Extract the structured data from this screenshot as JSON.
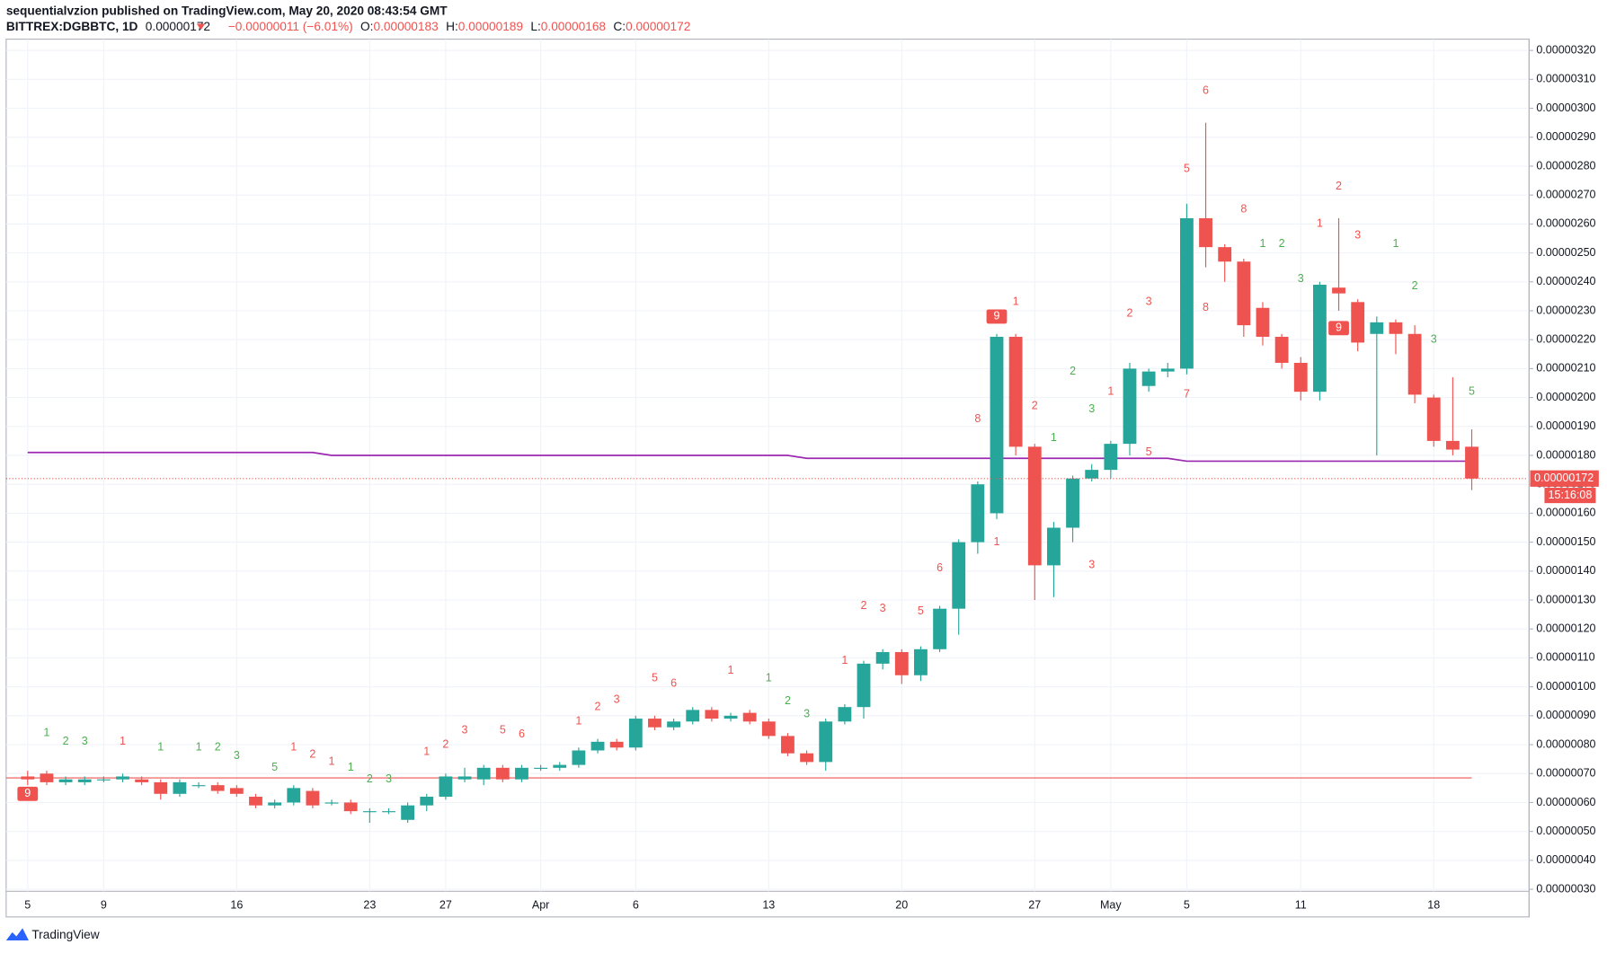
{
  "header": {
    "byline": "sequentialvzion published on TradingView.com, May 20, 2020 08:43:54 GMT",
    "symbol": "BITTREX:DGBBTC, 1D",
    "last": "0.00000172",
    "change": "−0.00000011 (−6.01%)",
    "ohlc": [
      {
        "label": "O:",
        "value": "0.00000183"
      },
      {
        "label": "H:",
        "value": "0.00000189"
      },
      {
        "label": "L:",
        "value": "0.00000168"
      },
      {
        "label": "C:",
        "value": "0.00000172"
      }
    ]
  },
  "footer": {
    "logo": "TradingView"
  },
  "chart_data": {
    "type": "candlestick",
    "categories": [
      "5",
      null,
      null,
      null,
      "9",
      null,
      null,
      null,
      null,
      null,
      null,
      "16",
      null,
      null,
      null,
      null,
      null,
      null,
      "23",
      null,
      null,
      null,
      "27",
      null,
      null,
      null,
      null,
      "Apr",
      null,
      null,
      null,
      null,
      "6",
      null,
      null,
      null,
      null,
      null,
      null,
      "13",
      null,
      null,
      null,
      null,
      null,
      null,
      "20",
      null,
      null,
      null,
      null,
      null,
      null,
      "27",
      null,
      null,
      null,
      "May",
      null,
      null,
      null,
      "5",
      null,
      null,
      null,
      null,
      null,
      "11",
      null,
      null,
      null,
      null,
      null,
      null,
      "18",
      null,
      null
    ],
    "open": [
      6.9e-07,
      7e-07,
      6.7e-07,
      6.7e-07,
      6.8e-07,
      6.8e-07,
      6.8e-07,
      6.7e-07,
      6.3e-07,
      6.6e-07,
      6.6e-07,
      6.5e-07,
      6.2e-07,
      5.9e-07,
      6e-07,
      6.4e-07,
      6e-07,
      6e-07,
      5.7e-07,
      5.7e-07,
      5.4e-07,
      5.9e-07,
      6.2e-07,
      6.8e-07,
      6.8e-07,
      7.2e-07,
      6.8e-07,
      7.2e-07,
      7.2e-07,
      7.3e-07,
      7.8e-07,
      8.1e-07,
      7.9e-07,
      8.9e-07,
      8.6e-07,
      8.8e-07,
      9.2e-07,
      8.9e-07,
      9.1e-07,
      8.8e-07,
      8.3e-07,
      7.7e-07,
      7.4e-07,
      8.8e-07,
      9.3e-07,
      1.08e-06,
      1.12e-06,
      1.04e-06,
      1.13e-06,
      1.27e-06,
      1.5e-06,
      1.6e-06,
      2.21e-06,
      1.83e-06,
      1.42e-06,
      1.55e-06,
      1.72e-06,
      1.75e-06,
      1.84e-06,
      2.04e-06,
      2.09e-06,
      2.1e-06,
      2.62e-06,
      2.52e-06,
      2.47e-06,
      2.31e-06,
      2.21e-06,
      2.12e-06,
      2.02e-06,
      2.38e-06,
      2.33e-06,
      2.22e-06,
      2.26e-06,
      2.22e-06,
      2e-06,
      1.85e-06,
      1.83e-06
    ],
    "high": [
      7.1e-07,
      7.1e-07,
      6.9e-07,
      6.9e-07,
      6.9e-07,
      7e-07,
      6.9e-07,
      6.8e-07,
      6.8e-07,
      6.7e-07,
      6.7e-07,
      6.6e-07,
      6.3e-07,
      6.1e-07,
      6.6e-07,
      6.5e-07,
      6.1e-07,
      6.1e-07,
      5.8e-07,
      5.8e-07,
      6e-07,
      6.3e-07,
      7e-07,
      7.2e-07,
      7.3e-07,
      7.3e-07,
      7.3e-07,
      7.3e-07,
      7.4e-07,
      7.9e-07,
      8.2e-07,
      8.2e-07,
      9e-07,
      9e-07,
      8.9e-07,
      9.3e-07,
      9.3e-07,
      9.1e-07,
      9.2e-07,
      8.9e-07,
      8.4e-07,
      7.8e-07,
      8.9e-07,
      9.4e-07,
      1.09e-06,
      1.13e-06,
      1.13e-06,
      1.14e-06,
      1.28e-06,
      1.51e-06,
      1.71e-06,
      2.22e-06,
      2.22e-06,
      1.84e-06,
      1.57e-06,
      1.73e-06,
      1.77e-06,
      1.85e-06,
      2.12e-06,
      2.1e-06,
      2.12e-06,
      2.67e-06,
      2.95e-06,
      2.53e-06,
      2.48e-06,
      2.33e-06,
      2.22e-06,
      2.14e-06,
      2.4e-06,
      2.62e-06,
      2.34e-06,
      2.28e-06,
      2.27e-06,
      2.25e-06,
      2.01e-06,
      2.07e-06,
      1.89e-06
    ],
    "low": [
      6.6e-07,
      6.6e-07,
      6.6e-07,
      6.6e-07,
      6.7e-07,
      6.7e-07,
      6.6e-07,
      6.1e-07,
      6.2e-07,
      6.5e-07,
      6.3e-07,
      6.2e-07,
      5.8e-07,
      5.8e-07,
      5.9e-07,
      5.8e-07,
      5.9e-07,
      5.6e-07,
      5.3e-07,
      5.6e-07,
      5.3e-07,
      5.7e-07,
      6.1e-07,
      6.7e-07,
      6.6e-07,
      6.7e-07,
      6.7e-07,
      7.1e-07,
      7.1e-07,
      7.2e-07,
      7.7e-07,
      7.8e-07,
      7.8e-07,
      8.5e-07,
      8.5e-07,
      8.7e-07,
      8.8e-07,
      8.8e-07,
      8.7e-07,
      8.2e-07,
      7.6e-07,
      7.3e-07,
      7.1e-07,
      8.7e-07,
      8.9e-07,
      1.06e-06,
      1.01e-06,
      1.02e-06,
      1.12e-06,
      1.18e-06,
      1.46e-06,
      1.58e-06,
      1.8e-06,
      1.3e-06,
      1.31e-06,
      1.5e-06,
      1.71e-06,
      1.72e-06,
      1.8e-06,
      2.02e-06,
      2.07e-06,
      2.08e-06,
      2.45e-06,
      2.4e-06,
      2.21e-06,
      2.18e-06,
      2.1e-06,
      1.99e-06,
      1.99e-06,
      2.3e-06,
      2.16e-06,
      1.8e-06,
      2.15e-06,
      1.98e-06,
      1.83e-06,
      1.8e-06,
      1.68e-06
    ],
    "close": [
      6.8e-07,
      6.7e-07,
      6.8e-07,
      6.8e-07,
      6.8e-07,
      6.9e-07,
      6.7e-07,
      6.3e-07,
      6.7e-07,
      6.6e-07,
      6.4e-07,
      6.3e-07,
      5.9e-07,
      6e-07,
      6.5e-07,
      5.9e-07,
      6e-07,
      5.7e-07,
      5.7e-07,
      5.7e-07,
      5.9e-07,
      6.2e-07,
      6.9e-07,
      6.9e-07,
      7.2e-07,
      6.8e-07,
      7.2e-07,
      7.2e-07,
      7.3e-07,
      7.8e-07,
      8.1e-07,
      7.9e-07,
      8.9e-07,
      8.6e-07,
      8.8e-07,
      9.2e-07,
      8.9e-07,
      9e-07,
      8.8e-07,
      8.3e-07,
      7.7e-07,
      7.4e-07,
      8.8e-07,
      9.3e-07,
      1.08e-06,
      1.12e-06,
      1.04e-06,
      1.13e-06,
      1.27e-06,
      1.5e-06,
      1.7e-06,
      2.21e-06,
      1.83e-06,
      1.42e-06,
      1.55e-06,
      1.72e-06,
      1.75e-06,
      1.84e-06,
      2.1e-06,
      2.09e-06,
      2.1e-06,
      2.62e-06,
      2.52e-06,
      2.47e-06,
      2.25e-06,
      2.21e-06,
      2.12e-06,
      2.02e-06,
      2.39e-06,
      2.36e-06,
      2.19e-06,
      2.26e-06,
      2.22e-06,
      2.01e-06,
      1.85e-06,
      1.82e-06,
      1.72e-06
    ],
    "up_color": "#26a69a",
    "down_color": "#ef5350",
    "ma": {
      "color": "#9c27b0",
      "values": [
        1.81e-06,
        1.81e-06,
        1.81e-06,
        1.81e-06,
        1.81e-06,
        1.81e-06,
        1.81e-06,
        1.81e-06,
        1.81e-06,
        1.81e-06,
        1.81e-06,
        1.81e-06,
        1.81e-06,
        1.81e-06,
        1.81e-06,
        1.81e-06,
        1.8e-06,
        1.8e-06,
        1.8e-06,
        1.8e-06,
        1.8e-06,
        1.8e-06,
        1.8e-06,
        1.8e-06,
        1.8e-06,
        1.8e-06,
        1.8e-06,
        1.8e-06,
        1.8e-06,
        1.8e-06,
        1.8e-06,
        1.8e-06,
        1.8e-06,
        1.8e-06,
        1.8e-06,
        1.8e-06,
        1.8e-06,
        1.8e-06,
        1.8e-06,
        1.8e-06,
        1.8e-06,
        1.79e-06,
        1.79e-06,
        1.79e-06,
        1.79e-06,
        1.79e-06,
        1.79e-06,
        1.79e-06,
        1.79e-06,
        1.79e-06,
        1.79e-06,
        1.79e-06,
        1.79e-06,
        1.79e-06,
        1.79e-06,
        1.79e-06,
        1.79e-06,
        1.79e-06,
        1.79e-06,
        1.79e-06,
        1.79e-06,
        1.78e-06,
        1.78e-06,
        1.78e-06,
        1.78e-06,
        1.78e-06,
        1.78e-06,
        1.78e-06,
        1.78e-06,
        1.78e-06,
        1.78e-06,
        1.78e-06,
        1.78e-06,
        1.78e-06,
        1.78e-06,
        1.78e-06,
        1.78e-06
      ]
    },
    "hline": {
      "value": 6.85e-07,
      "color": "#ef5350"
    },
    "price_label": "0.00000172",
    "countdown": "15:16:08",
    "annotations": [
      {
        "text": "9",
        "i": 51,
        "y": 2.28e-06,
        "color": "#ef5350",
        "boxed": true
      },
      {
        "text": "1",
        "i": 52,
        "y": 2.33e-06,
        "color": "#ef5350"
      },
      {
        "text": "8",
        "i": 50,
        "y": 1.925e-06,
        "color": "#ef5350"
      },
      {
        "text": "6",
        "i": 48,
        "y": 1.41e-06,
        "color": "#ef5350"
      },
      {
        "text": "5",
        "i": 47,
        "y": 1.26e-06,
        "color": "#ef5350"
      },
      {
        "text": "2",
        "i": 44,
        "y": 1.28e-06,
        "color": "#ef5350"
      },
      {
        "text": "3",
        "i": 45,
        "y": 1.27e-06,
        "color": "#ef5350"
      },
      {
        "text": "1",
        "i": 43,
        "y": 1.09e-06,
        "color": "#ef5350"
      },
      {
        "text": "1",
        "i": 51,
        "y": 1.5e-06,
        "color": "#ef5350"
      },
      {
        "text": "2",
        "i": 53,
        "y": 1.97e-06,
        "color": "#ef5350"
      },
      {
        "text": "1",
        "i": 54,
        "y": 1.86e-06,
        "color": "#4caf50"
      },
      {
        "text": "2",
        "i": 55,
        "y": 2.09e-06,
        "color": "#4caf50"
      },
      {
        "text": "3",
        "i": 56,
        "y": 1.96e-06,
        "color": "#4caf50"
      },
      {
        "text": "3",
        "i": 56,
        "y": 1.42e-06,
        "color": "#ef5350"
      },
      {
        "text": "1",
        "i": 57,
        "y": 2.02e-06,
        "color": "#ef5350"
      },
      {
        "text": "2",
        "i": 58,
        "y": 2.29e-06,
        "color": "#ef5350"
      },
      {
        "text": "3",
        "i": 59,
        "y": 2.33e-06,
        "color": "#ef5350"
      },
      {
        "text": "5",
        "i": 59,
        "y": 1.81e-06,
        "color": "#ef5350"
      },
      {
        "text": "5",
        "i": 61,
        "y": 2.79e-06,
        "color": "#ef5350"
      },
      {
        "text": "6",
        "i": 62,
        "y": 3.06e-06,
        "color": "#ef5350"
      },
      {
        "text": "7",
        "i": 61,
        "y": 2.01e-06,
        "color": "#ef5350"
      },
      {
        "text": "8",
        "i": 62,
        "y": 2.31e-06,
        "color": "#ef5350"
      },
      {
        "text": "8",
        "i": 64,
        "y": 2.65e-06,
        "color": "#ef5350"
      },
      {
        "text": "1",
        "i": 65,
        "y": 2.53e-06,
        "color": "#4caf50"
      },
      {
        "text": "2",
        "i": 66,
        "y": 2.53e-06,
        "color": "#4caf50"
      },
      {
        "text": "3",
        "i": 67,
        "y": 2.41e-06,
        "color": "#4caf50"
      },
      {
        "text": "9",
        "i": 69,
        "y": 2.24e-06,
        "color": "#ef5350",
        "boxed": true
      },
      {
        "text": "1",
        "i": 68,
        "y": 2.6e-06,
        "color": "#ef5350"
      },
      {
        "text": "2",
        "i": 69,
        "y": 2.73e-06,
        "color": "#ef5350"
      },
      {
        "text": "3",
        "i": 70,
        "y": 2.56e-06,
        "color": "#ef5350"
      },
      {
        "text": "1",
        "i": 72,
        "y": 2.53e-06,
        "color": "#4caf50"
      },
      {
        "text": "2",
        "i": 73,
        "y": 2.385e-06,
        "color": "#4caf50"
      },
      {
        "text": "3",
        "i": 74,
        "y": 2.2e-06,
        "color": "#4caf50"
      },
      {
        "text": "5",
        "i": 76,
        "y": 2.02e-06,
        "color": "#4caf50"
      },
      {
        "text": "1",
        "i": 21,
        "y": 7.75e-07,
        "color": "#ef5350"
      },
      {
        "text": "2",
        "i": 22,
        "y": 8e-07,
        "color": "#ef5350"
      },
      {
        "text": "3",
        "i": 23,
        "y": 8.5e-07,
        "color": "#ef5350"
      },
      {
        "text": "5",
        "i": 25,
        "y": 8.5e-07,
        "color": "#ef5350"
      },
      {
        "text": "6",
        "i": 26,
        "y": 8.35e-07,
        "color": "#ef5350"
      },
      {
        "text": "1",
        "i": 29,
        "y": 8.8e-07,
        "color": "#ef5350"
      },
      {
        "text": "2",
        "i": 30,
        "y": 9.3e-07,
        "color": "#ef5350"
      },
      {
        "text": "3",
        "i": 31,
        "y": 9.55e-07,
        "color": "#ef5350"
      },
      {
        "text": "5",
        "i": 33,
        "y": 1.03e-06,
        "color": "#ef5350"
      },
      {
        "text": "6",
        "i": 34,
        "y": 1.01e-06,
        "color": "#ef5350"
      },
      {
        "text": "1",
        "i": 37,
        "y": 1.055e-06,
        "color": "#ef5350"
      },
      {
        "text": "1",
        "i": 39,
        "y": 1.03e-06,
        "color": "#4caf50"
      },
      {
        "text": "2",
        "i": 40,
        "y": 9.5e-07,
        "color": "#4caf50"
      },
      {
        "text": "3",
        "i": 41,
        "y": 9.05e-07,
        "color": "#4caf50"
      },
      {
        "text": "1",
        "i": 1,
        "y": 8.4e-07,
        "color": "#4caf50"
      },
      {
        "text": "2",
        "i": 2,
        "y": 8.1e-07,
        "color": "#4caf50"
      },
      {
        "text": "3",
        "i": 3,
        "y": 8.1e-07,
        "color": "#4caf50"
      },
      {
        "text": "1",
        "i": 5,
        "y": 8.1e-07,
        "color": "#ef5350"
      },
      {
        "text": "1",
        "i": 7,
        "y": 7.9e-07,
        "color": "#4caf50"
      },
      {
        "text": "1",
        "i": 9,
        "y": 7.9e-07,
        "color": "#4caf50"
      },
      {
        "text": "2",
        "i": 10,
        "y": 7.9e-07,
        "color": "#4caf50"
      },
      {
        "text": "3",
        "i": 11,
        "y": 7.6e-07,
        "color": "#4caf50"
      },
      {
        "text": "5",
        "i": 13,
        "y": 7.2e-07,
        "color": "#4caf50"
      },
      {
        "text": "1",
        "i": 14,
        "y": 7.9e-07,
        "color": "#ef5350"
      },
      {
        "text": "2",
        "i": 15,
        "y": 7.65e-07,
        "color": "#ef5350"
      },
      {
        "text": "1",
        "i": 16,
        "y": 7.4e-07,
        "color": "#ef5350"
      },
      {
        "text": "1",
        "i": 17,
        "y": 7.2e-07,
        "color": "#4caf50"
      },
      {
        "text": "2",
        "i": 18,
        "y": 6.8e-07,
        "color": "#4caf50"
      },
      {
        "text": "3",
        "i": 19,
        "y": 6.8e-07,
        "color": "#4caf50"
      },
      {
        "text": "9",
        "i": 0,
        "y": 6.3e-07,
        "color": "#ef5350",
        "boxed": true
      }
    ],
    "ylim": [
      2.93e-07,
      3.239e-06
    ],
    "yticks": [
      {
        "value": 3e-07,
        "label": "0.00000030"
      },
      {
        "value": 4e-07,
        "label": "0.00000040"
      },
      {
        "value": 5e-07,
        "label": "0.00000050"
      },
      {
        "value": 6e-07,
        "label": "0.00000060"
      },
      {
        "value": 7e-07,
        "label": "0.00000070"
      },
      {
        "value": 8e-07,
        "label": "0.00000080"
      },
      {
        "value": 9e-07,
        "label": "0.00000090"
      },
      {
        "value": 1e-06,
        "label": "0.00000100"
      },
      {
        "value": 1.1e-06,
        "label": "0.00000110"
      },
      {
        "value": 1.2e-06,
        "label": "0.00000120"
      },
      {
        "value": 1.3e-06,
        "label": "0.00000130"
      },
      {
        "value": 1.4e-06,
        "label": "0.00000140"
      },
      {
        "value": 1.5e-06,
        "label": "0.00000150"
      },
      {
        "value": 1.6e-06,
        "label": "0.00000160"
      },
      {
        "value": 1.7e-06,
        "label": "0.00000170"
      },
      {
        "value": 1.8e-06,
        "label": "0.00000180"
      },
      {
        "value": 1.9e-06,
        "label": "0.00000190"
      },
      {
        "value": 2e-06,
        "label": "0.00000200"
      },
      {
        "value": 2.1e-06,
        "label": "0.00000210"
      },
      {
        "value": 2.2e-06,
        "label": "0.00000220"
      },
      {
        "value": 2.3e-06,
        "label": "0.00000230"
      },
      {
        "value": 2.4e-06,
        "label": "0.00000240"
      },
      {
        "value": 2.5e-06,
        "label": "0.00000250"
      },
      {
        "value": 2.6e-06,
        "label": "0.00000260"
      },
      {
        "value": 2.7e-06,
        "label": "0.00000270"
      },
      {
        "value": 2.8e-06,
        "label": "0.00000280"
      },
      {
        "value": 2.9e-06,
        "label": "0.00000290"
      },
      {
        "value": 3e-06,
        "label": "0.00000300"
      },
      {
        "value": 3.1e-06,
        "label": "0.00000310"
      },
      {
        "value": 3.2e-06,
        "label": "0.00000320"
      }
    ],
    "grid": true
  }
}
